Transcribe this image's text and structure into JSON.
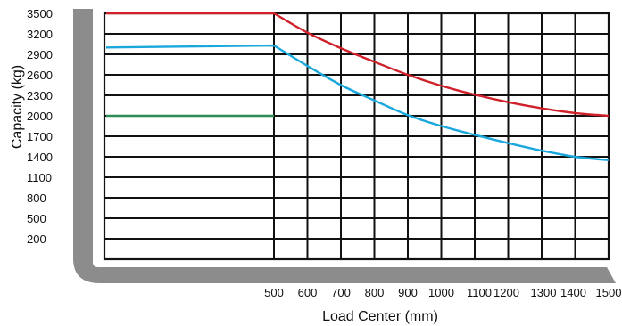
{
  "chart_data": {
    "type": "line",
    "title": "",
    "xlabel": "Load Center (mm)",
    "ylabel": "Capacity (kg)",
    "x_ticks": [
      "500",
      "600",
      "700",
      "800",
      "900",
      "1000",
      "1100",
      "1200",
      "1300",
      "1400",
      "1500"
    ],
    "y_ticks": [
      "3500",
      "3200",
      "2900",
      "2600",
      "2300",
      "2000",
      "1700",
      "1400",
      "1100",
      "800",
      "500",
      "200"
    ],
    "ylim": [
      200,
      3500
    ],
    "grid": true,
    "legend": "none",
    "series": [
      {
        "color": "#d0202a",
        "points": [
          [
            "start",
            3500
          ],
          [
            500,
            3500
          ],
          [
            600,
            3217
          ],
          [
            700,
            2990
          ],
          [
            800,
            2790
          ],
          [
            900,
            2600
          ],
          [
            1000,
            2440
          ],
          [
            1100,
            2310
          ],
          [
            1200,
            2200
          ],
          [
            1300,
            2110
          ],
          [
            1400,
            2040
          ],
          [
            1500,
            2000
          ]
        ]
      },
      {
        "color": "#1aa7dc",
        "points": [
          [
            "start",
            3000
          ],
          [
            500,
            3030
          ],
          [
            600,
            2730
          ],
          [
            700,
            2450
          ],
          [
            800,
            2225
          ],
          [
            900,
            2010
          ],
          [
            1000,
            1850
          ],
          [
            1100,
            1720
          ],
          [
            1200,
            1600
          ],
          [
            1300,
            1490
          ],
          [
            1400,
            1400
          ],
          [
            1500,
            1350
          ]
        ]
      },
      {
        "color": "#2e8b57",
        "points": [
          [
            "start",
            2000
          ],
          [
            500,
            2000
          ]
        ]
      }
    ]
  }
}
